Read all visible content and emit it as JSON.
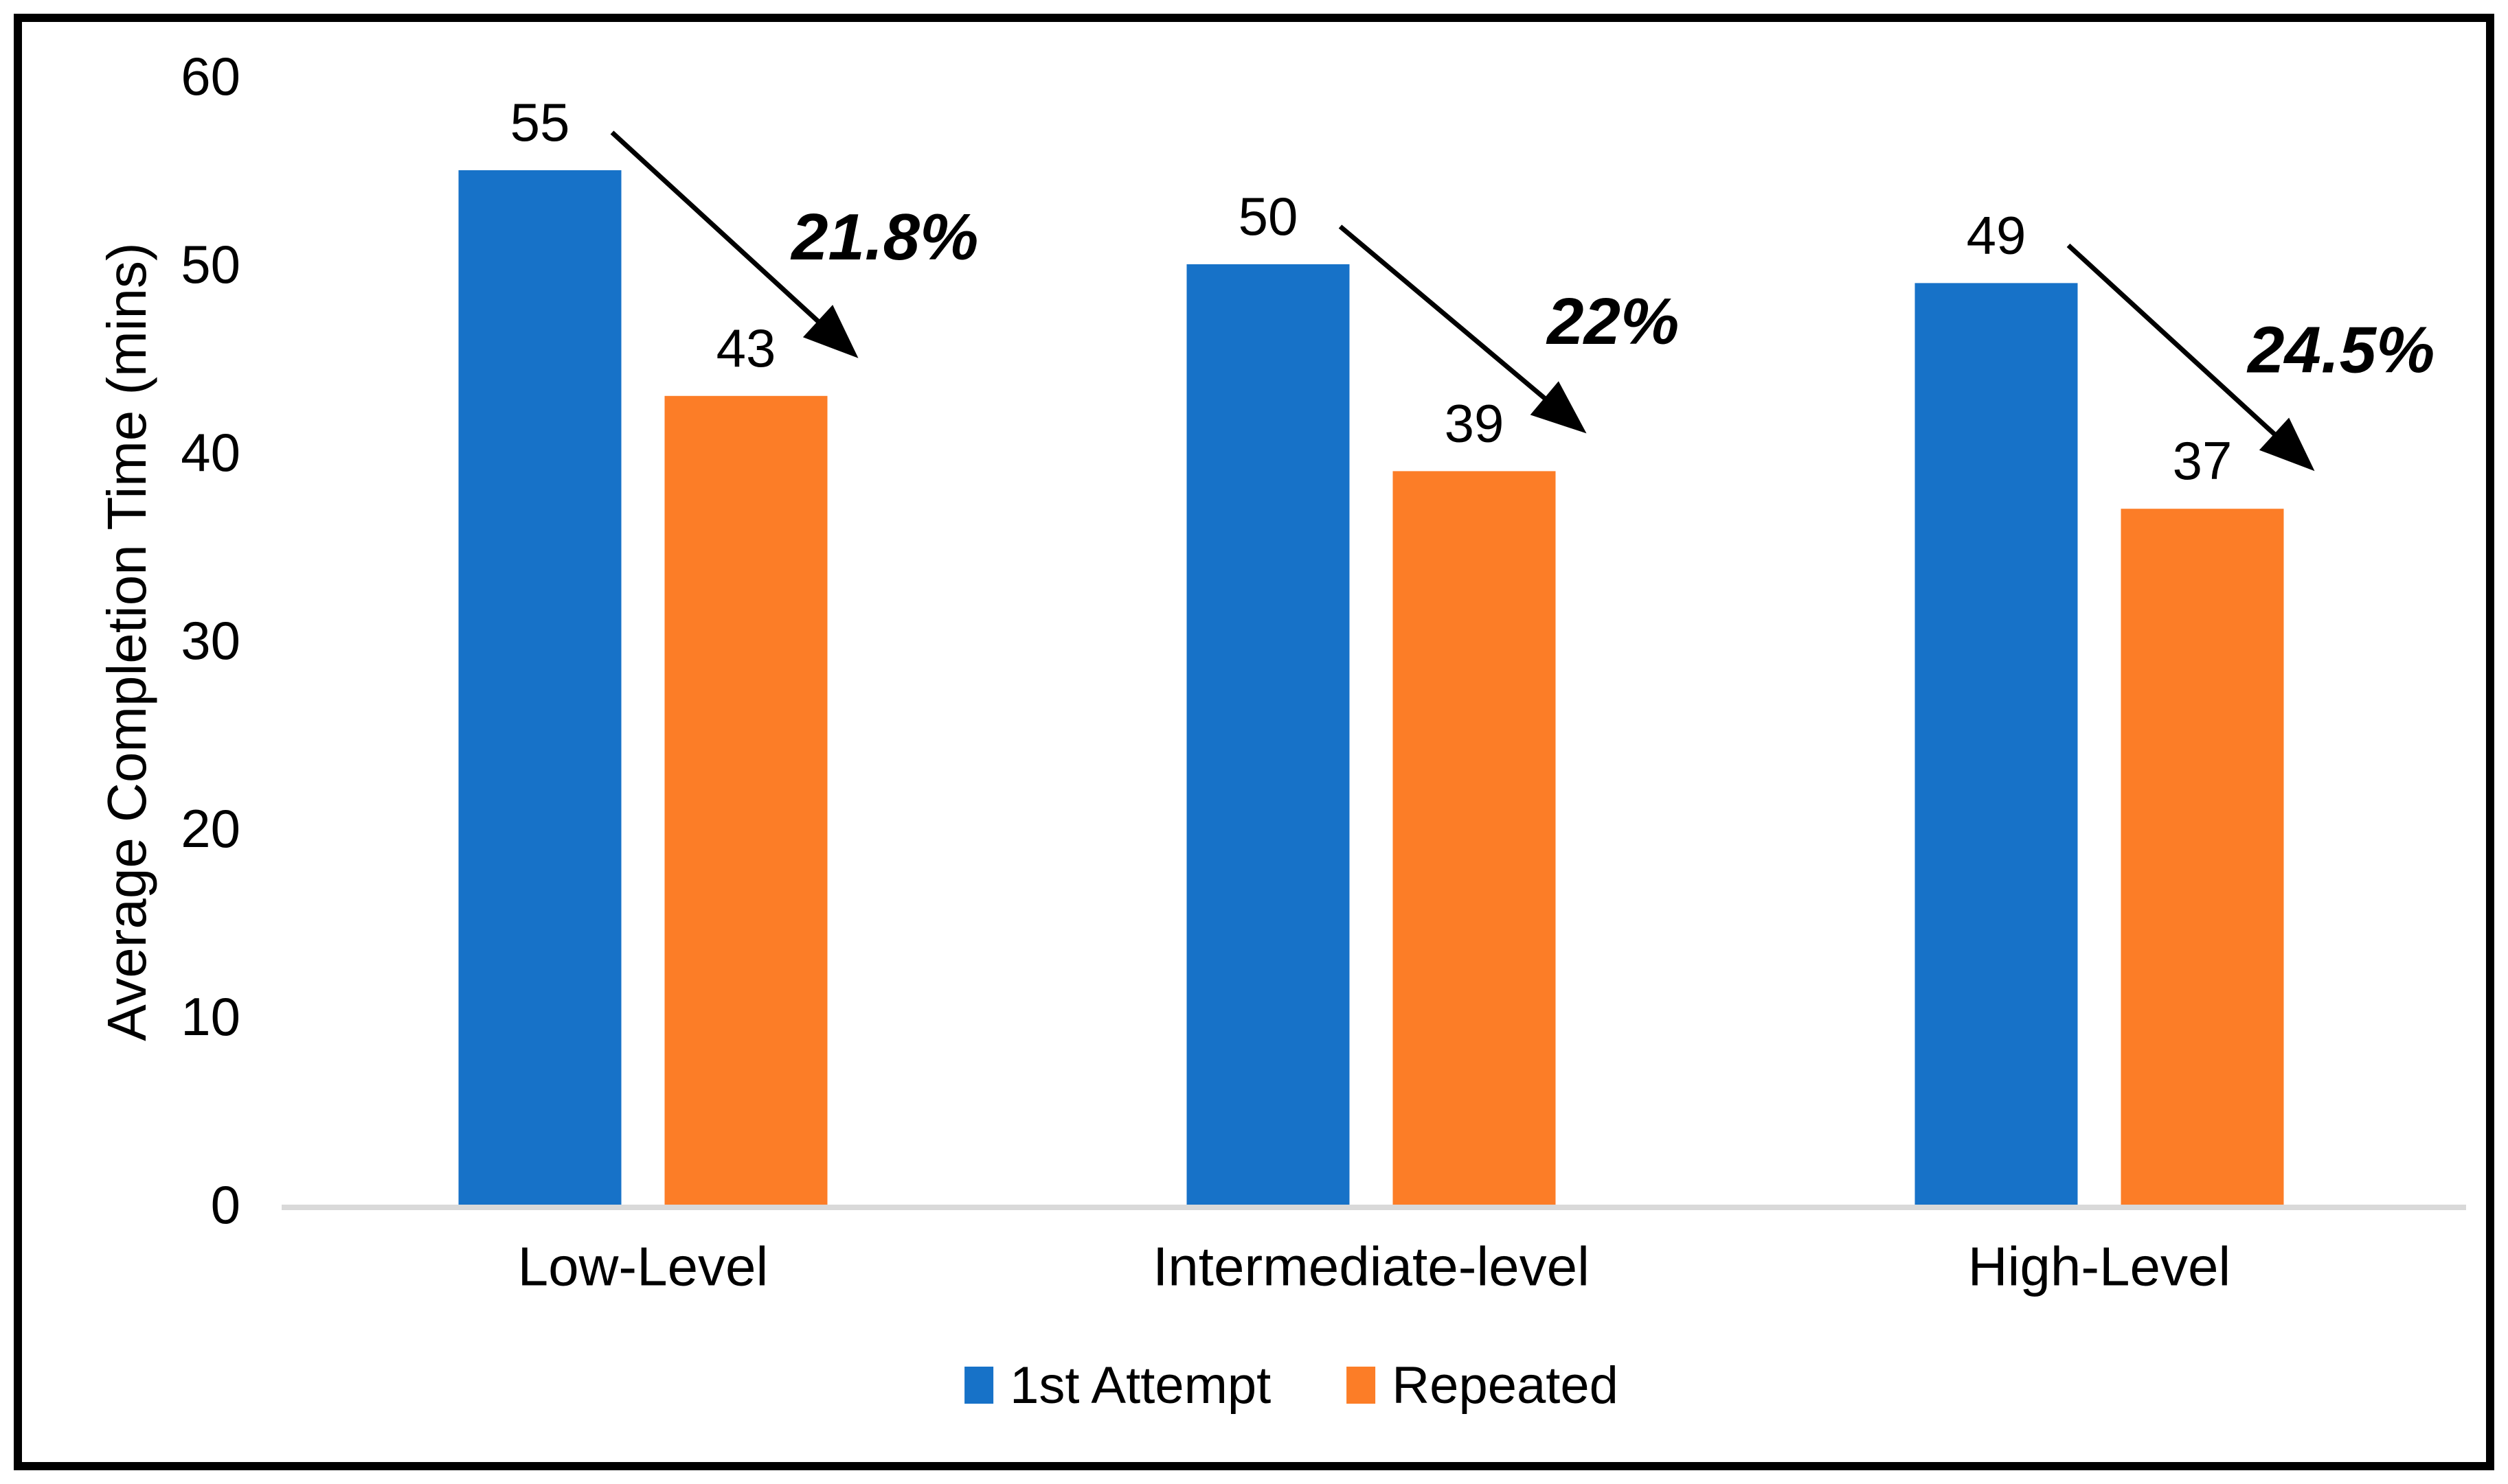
{
  "chart_data": {
    "type": "bar",
    "title": "",
    "ylabel": "Average Completion Time (mins)",
    "xlabel": "",
    "categories": [
      "Low-Level",
      "Intermediate-level",
      "High-Level"
    ],
    "series": [
      {
        "name": "1st Attempt",
        "color": "#1772C8",
        "values": [
          55,
          50,
          49
        ]
      },
      {
        "name": "Repeated",
        "color": "#FC7D27",
        "values": [
          43,
          39,
          37
        ]
      }
    ],
    "annotations": [
      {
        "group": "Low-Level",
        "label": "21.8%"
      },
      {
        "group": "Intermediate-level",
        "label": "22%"
      },
      {
        "group": "High-Level",
        "label": "24.5%"
      }
    ],
    "yticks": [
      0,
      10,
      20,
      30,
      40,
      50,
      60
    ],
    "ylim": [
      0,
      60
    ],
    "grid": false,
    "legend_position": "bottom",
    "colors": {
      "axis_line": "#D9D9D9",
      "text": "#000000",
      "frame_border": "#000000",
      "background": "#FFFFFF",
      "arrow": "#000000"
    }
  }
}
